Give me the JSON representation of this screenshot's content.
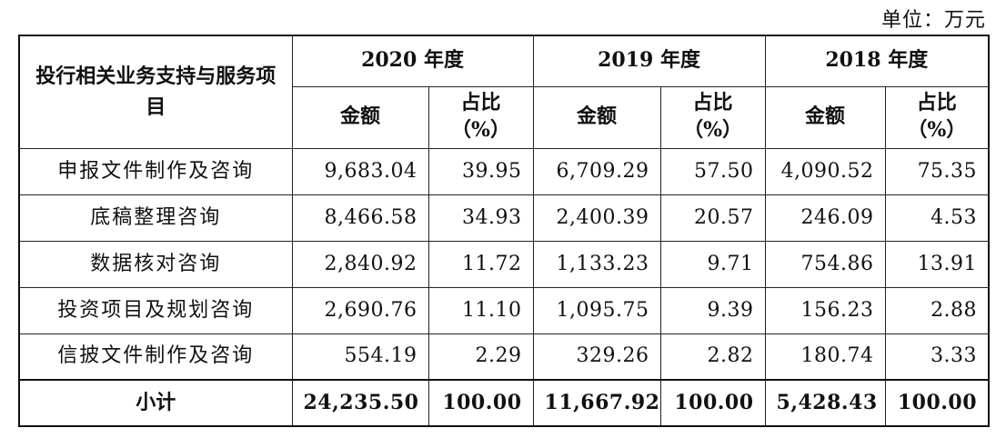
{
  "unit_label": "单位：万元",
  "header": {
    "category": "投行相关业务支持与服务项目",
    "years": [
      "2020 年度",
      "2019 年度",
      "2018 年度"
    ],
    "amount": "金额",
    "ratio": "占比",
    "ratio_unit": "（%）"
  },
  "rows": [
    {
      "name": "申报文件制作及咨询",
      "values": [
        "9,683.04",
        "39.95",
        "6,709.29",
        "57.50",
        "4,090.52",
        "75.35"
      ]
    },
    {
      "name": "底稿整理咨询",
      "values": [
        "8,466.58",
        "34.93",
        "2,400.39",
        "20.57",
        "246.09",
        "4.53"
      ]
    },
    {
      "name": "数据核对咨询",
      "values": [
        "2,840.92",
        "11.72",
        "1,133.23",
        "9.71",
        "754.86",
        "13.91"
      ]
    },
    {
      "name": "投资项目及规划咨询",
      "values": [
        "2,690.76",
        "11.10",
        "1,095.75",
        "9.39",
        "156.23",
        "2.88"
      ]
    },
    {
      "name": "信披文件制作及咨询",
      "values": [
        "554.19",
        "2.29",
        "329.26",
        "2.82",
        "180.74",
        "3.33"
      ]
    }
  ],
  "total": {
    "name": "小计",
    "values": [
      "24,235.50",
      "100.00",
      "11,667.92",
      "100.00",
      "5,428.43",
      "100.00"
    ]
  }
}
